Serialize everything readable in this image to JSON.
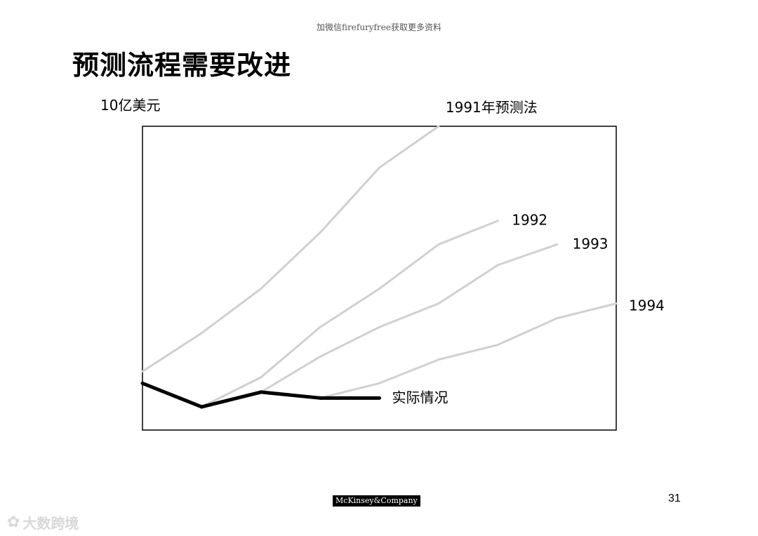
{
  "header_note": "加微信firefuryfree获取更多资料",
  "title": "预测流程需要改进",
  "unit_label": "10亿美元",
  "footer": {
    "logo_text": "McKinsey&Company",
    "page_number": "31",
    "watermark_text": "大数跨境"
  },
  "chart_data": {
    "type": "line",
    "title": "预测流程需要改进",
    "ylabel": "10亿美元",
    "xlabel": "",
    "x": [
      0,
      1,
      2,
      3,
      4,
      5,
      6,
      7,
      8
    ],
    "ylim": [
      0,
      100
    ],
    "grid": false,
    "legend": "none (series labeled directly at line ends)",
    "colors": {
      "forecast": "#d0d0d0",
      "actual": "#000000"
    },
    "series": [
      {
        "name": "1991年预测法",
        "x": [
          0,
          1,
          2,
          3,
          4,
          5
        ],
        "values": [
          17,
          30,
          45,
          64,
          86,
          100
        ],
        "color": "#d0d0d0"
      },
      {
        "name": "1992",
        "x": [
          1,
          2,
          3,
          4,
          5,
          6
        ],
        "values": [
          5,
          15,
          32,
          45,
          60,
          68
        ],
        "color": "#d0d0d0"
      },
      {
        "name": "1993",
        "x": [
          1,
          2,
          3,
          4,
          5,
          6,
          7
        ],
        "values": [
          5,
          10,
          22,
          32,
          40,
          53,
          60
        ],
        "color": "#d0d0d0"
      },
      {
        "name": "1994",
        "x": [
          3,
          4,
          5,
          6,
          7,
          8
        ],
        "values": [
          8,
          13,
          21,
          26,
          35,
          40
        ],
        "color": "#d0d0d0"
      },
      {
        "name": "实际情况",
        "x": [
          0,
          1,
          2,
          3,
          4
        ],
        "values": [
          13,
          5,
          10,
          8,
          8
        ],
        "color": "#000000"
      }
    ]
  }
}
